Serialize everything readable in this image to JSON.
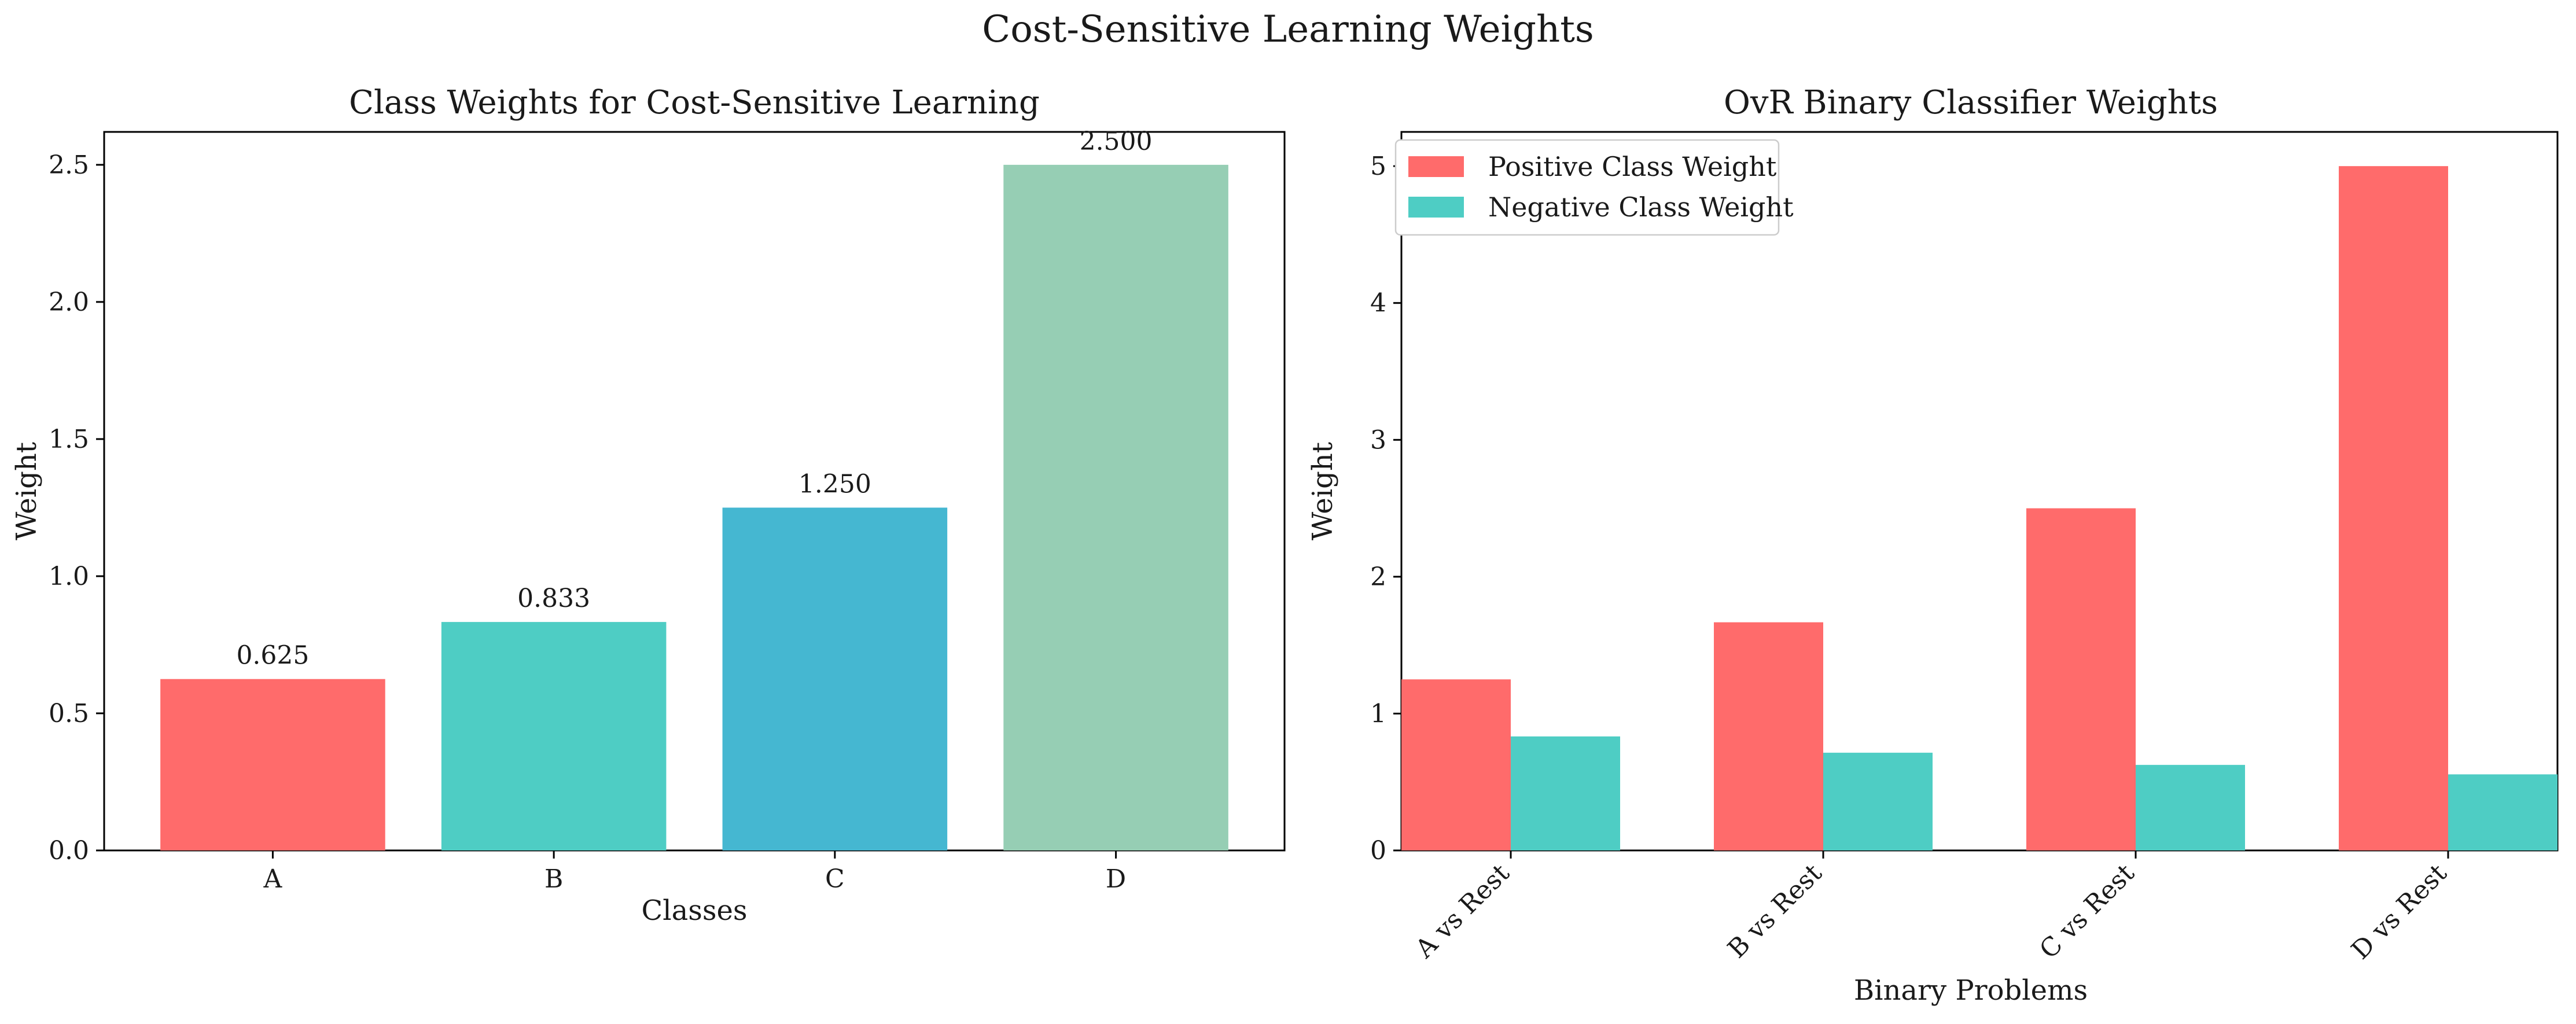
{
  "figure": {
    "suptitle": "Cost-Sensitive Learning Weights"
  },
  "chart_data": [
    {
      "type": "bar",
      "title": "Class Weights for Cost-Sensitive Learning",
      "xlabel": "Classes",
      "ylabel": "Weight",
      "categories": [
        "A",
        "B",
        "C",
        "D"
      ],
      "values": [
        0.625,
        0.833,
        1.25,
        2.5
      ],
      "value_labels": [
        "0.625",
        "0.833",
        "1.250",
        "2.500"
      ],
      "bar_colors": [
        "#ff6b6b",
        "#4ecdc4",
        "#45b7d1",
        "#96ceb4"
      ],
      "ylim": [
        0,
        2.62
      ],
      "yticks": [
        "0.0",
        "0.5",
        "1.0",
        "1.5",
        "2.0",
        "2.5"
      ],
      "grid": false
    },
    {
      "type": "bar",
      "title": "OvR Binary Classifier Weights",
      "xlabel": "Binary Problems",
      "ylabel": "Weight",
      "categories": [
        "A vs Rest",
        "B vs Rest",
        "C vs Rest",
        "D vs Rest"
      ],
      "series": [
        {
          "name": "Positive Class Weight",
          "color": "#ff6b6b",
          "values": [
            1.25,
            1.667,
            2.5,
            5.0
          ]
        },
        {
          "name": "Negative Class Weight",
          "color": "#4ecdc4",
          "values": [
            0.833,
            0.714,
            0.625,
            0.556
          ]
        }
      ],
      "ylim": [
        0,
        5.25
      ],
      "yticks": [
        "0",
        "1",
        "2",
        "3",
        "4",
        "5"
      ],
      "legend": "top-left",
      "grid": false
    }
  ]
}
